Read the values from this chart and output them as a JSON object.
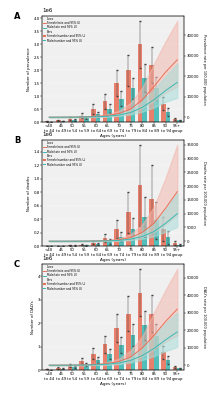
{
  "age_labels": [
    "<40\nto 44",
    "45\nto 49",
    "50\nto 54",
    "55\nto 59",
    "60\nto 64",
    "65\nto 69",
    "70\nto 74",
    "75\nto 79",
    "80\nto 84",
    "85\nto 89",
    "90\nto 94",
    "95+\ngroup"
  ],
  "panel_labels": [
    "A",
    "B",
    "C"
  ],
  "ylabels_left": [
    "Number of prevalence",
    "Number of deaths",
    "Number of DALYs"
  ],
  "ylabels_right": [
    "Prevalence rate per 100,000 population",
    "Deaths rate per 100,000 population",
    "DALYs rate per 100,000 population"
  ],
  "xlabel": "Ages (years)",
  "female_bars_A": [
    20000,
    60000,
    130000,
    250000,
    500000,
    800000,
    1500000,
    2000000,
    3000000,
    2200000,
    700000,
    100000
  ],
  "male_bars_A": [
    10000,
    35000,
    80000,
    160000,
    300000,
    520000,
    900000,
    1300000,
    1700000,
    1300000,
    400000,
    60000
  ],
  "female_err_A": [
    5000,
    20000,
    50000,
    80000,
    180000,
    280000,
    500000,
    600000,
    900000,
    700000,
    250000,
    40000
  ],
  "male_err_A": [
    3000,
    12000,
    30000,
    50000,
    100000,
    180000,
    300000,
    400000,
    550000,
    450000,
    150000,
    25000
  ],
  "female_bars_B": [
    1000,
    3000,
    8000,
    20000,
    50000,
    120000,
    250000,
    500000,
    900000,
    700000,
    250000,
    40000
  ],
  "male_bars_B": [
    600,
    1800,
    5000,
    12000,
    30000,
    70000,
    140000,
    260000,
    430000,
    380000,
    130000,
    20000
  ],
  "female_err_B": [
    400,
    1500,
    4000,
    10000,
    25000,
    60000,
    130000,
    300000,
    600000,
    500000,
    180000,
    30000
  ],
  "male_err_B": [
    250,
    900,
    2500,
    6000,
    15000,
    35000,
    70000,
    160000,
    300000,
    270000,
    100000,
    15000
  ],
  "female_bars_C": [
    30000,
    90000,
    200000,
    380000,
    700000,
    1100000,
    1800000,
    2400000,
    3300000,
    2400000,
    750000,
    110000
  ],
  "male_bars_C": [
    15000,
    50000,
    120000,
    230000,
    420000,
    680000,
    1050000,
    1500000,
    1900000,
    1450000,
    430000,
    65000
  ],
  "female_err_C": [
    8000,
    30000,
    75000,
    120000,
    230000,
    360000,
    600000,
    750000,
    1000000,
    780000,
    270000,
    42000
  ],
  "male_err_C": [
    4000,
    18000,
    45000,
    70000,
    130000,
    210000,
    340000,
    460000,
    610000,
    500000,
    160000,
    26000
  ],
  "female_line_A": [
    10,
    25,
    60,
    150,
    350,
    800,
    1800,
    4000,
    8500,
    15000,
    22000,
    28000
  ],
  "male_line_A": [
    6,
    15,
    35,
    90,
    210,
    480,
    1050,
    2300,
    4800,
    8500,
    13000,
    17000
  ],
  "female_ci_lo_A": [
    5,
    13,
    30,
    80,
    190,
    450,
    1000,
    2200,
    4600,
    8000,
    12000,
    15000
  ],
  "female_ci_hi_A": [
    18,
    44,
    105,
    260,
    600,
    1400,
    3200,
    7000,
    14500,
    26000,
    37000,
    47000
  ],
  "male_ci_lo_A": [
    3,
    8,
    18,
    48,
    115,
    270,
    600,
    1300,
    2700,
    4800,
    7500,
    9500
  ],
  "male_ci_hi_A": [
    10,
    24,
    56,
    140,
    330,
    750,
    1680,
    3700,
    7600,
    13500,
    20000,
    26000
  ],
  "female_line_B": [
    2,
    5,
    12,
    30,
    80,
    200,
    520,
    1300,
    3200,
    6500,
    12000,
    18000
  ],
  "male_line_B": [
    1,
    3,
    7,
    18,
    45,
    115,
    290,
    720,
    1700,
    3500,
    6500,
    10000
  ],
  "female_ci_lo_B": [
    1,
    2,
    6,
    15,
    40,
    100,
    270,
    680,
    1650,
    3300,
    6200,
    9500
  ],
  "female_ci_hi_B": [
    4,
    9,
    22,
    55,
    145,
    370,
    970,
    2500,
    6200,
    12500,
    23000,
    35000
  ],
  "male_ci_lo_B": [
    0,
    1,
    3,
    9,
    22,
    55,
    150,
    370,
    880,
    1800,
    3400,
    5200
  ],
  "male_ci_hi_B": [
    2,
    5,
    12,
    29,
    77,
    195,
    520,
    1300,
    3100,
    6300,
    11500,
    17500
  ],
  "female_line_C": [
    12,
    30,
    70,
    175,
    400,
    920,
    2100,
    4700,
    9800,
    17000,
    25000,
    32000
  ],
  "male_line_C": [
    7,
    18,
    42,
    105,
    240,
    550,
    1250,
    2750,
    5500,
    9500,
    14500,
    19000
  ],
  "female_ci_lo_C": [
    6,
    15,
    35,
    90,
    210,
    510,
    1150,
    2600,
    5300,
    9000,
    13500,
    17000
  ],
  "female_ci_hi_C": [
    22,
    53,
    120,
    295,
    680,
    1580,
    3700,
    8500,
    16500,
    30000,
    43000,
    55000
  ],
  "male_ci_lo_C": [
    3,
    9,
    21,
    54,
    125,
    300,
    680,
    1520,
    3000,
    5200,
    8000,
    10500
  ],
  "male_ci_hi_C": [
    12,
    30,
    67,
    160,
    380,
    870,
    2050,
    4800,
    9500,
    16500,
    24000,
    30000
  ],
  "female_color": "#E8715A",
  "male_color": "#3CB8B2",
  "female_ci_color": "#F2B8AF",
  "male_ci_color": "#A8DDD9",
  "background_color": "#F0F0F0",
  "legend_line1": "Female/rate and 95% UI",
  "legend_line2": "Male/rate and 95% UI",
  "legend_bar1": "Female/number and 95% UI",
  "legend_bar2": "Male/number and 95% UI"
}
